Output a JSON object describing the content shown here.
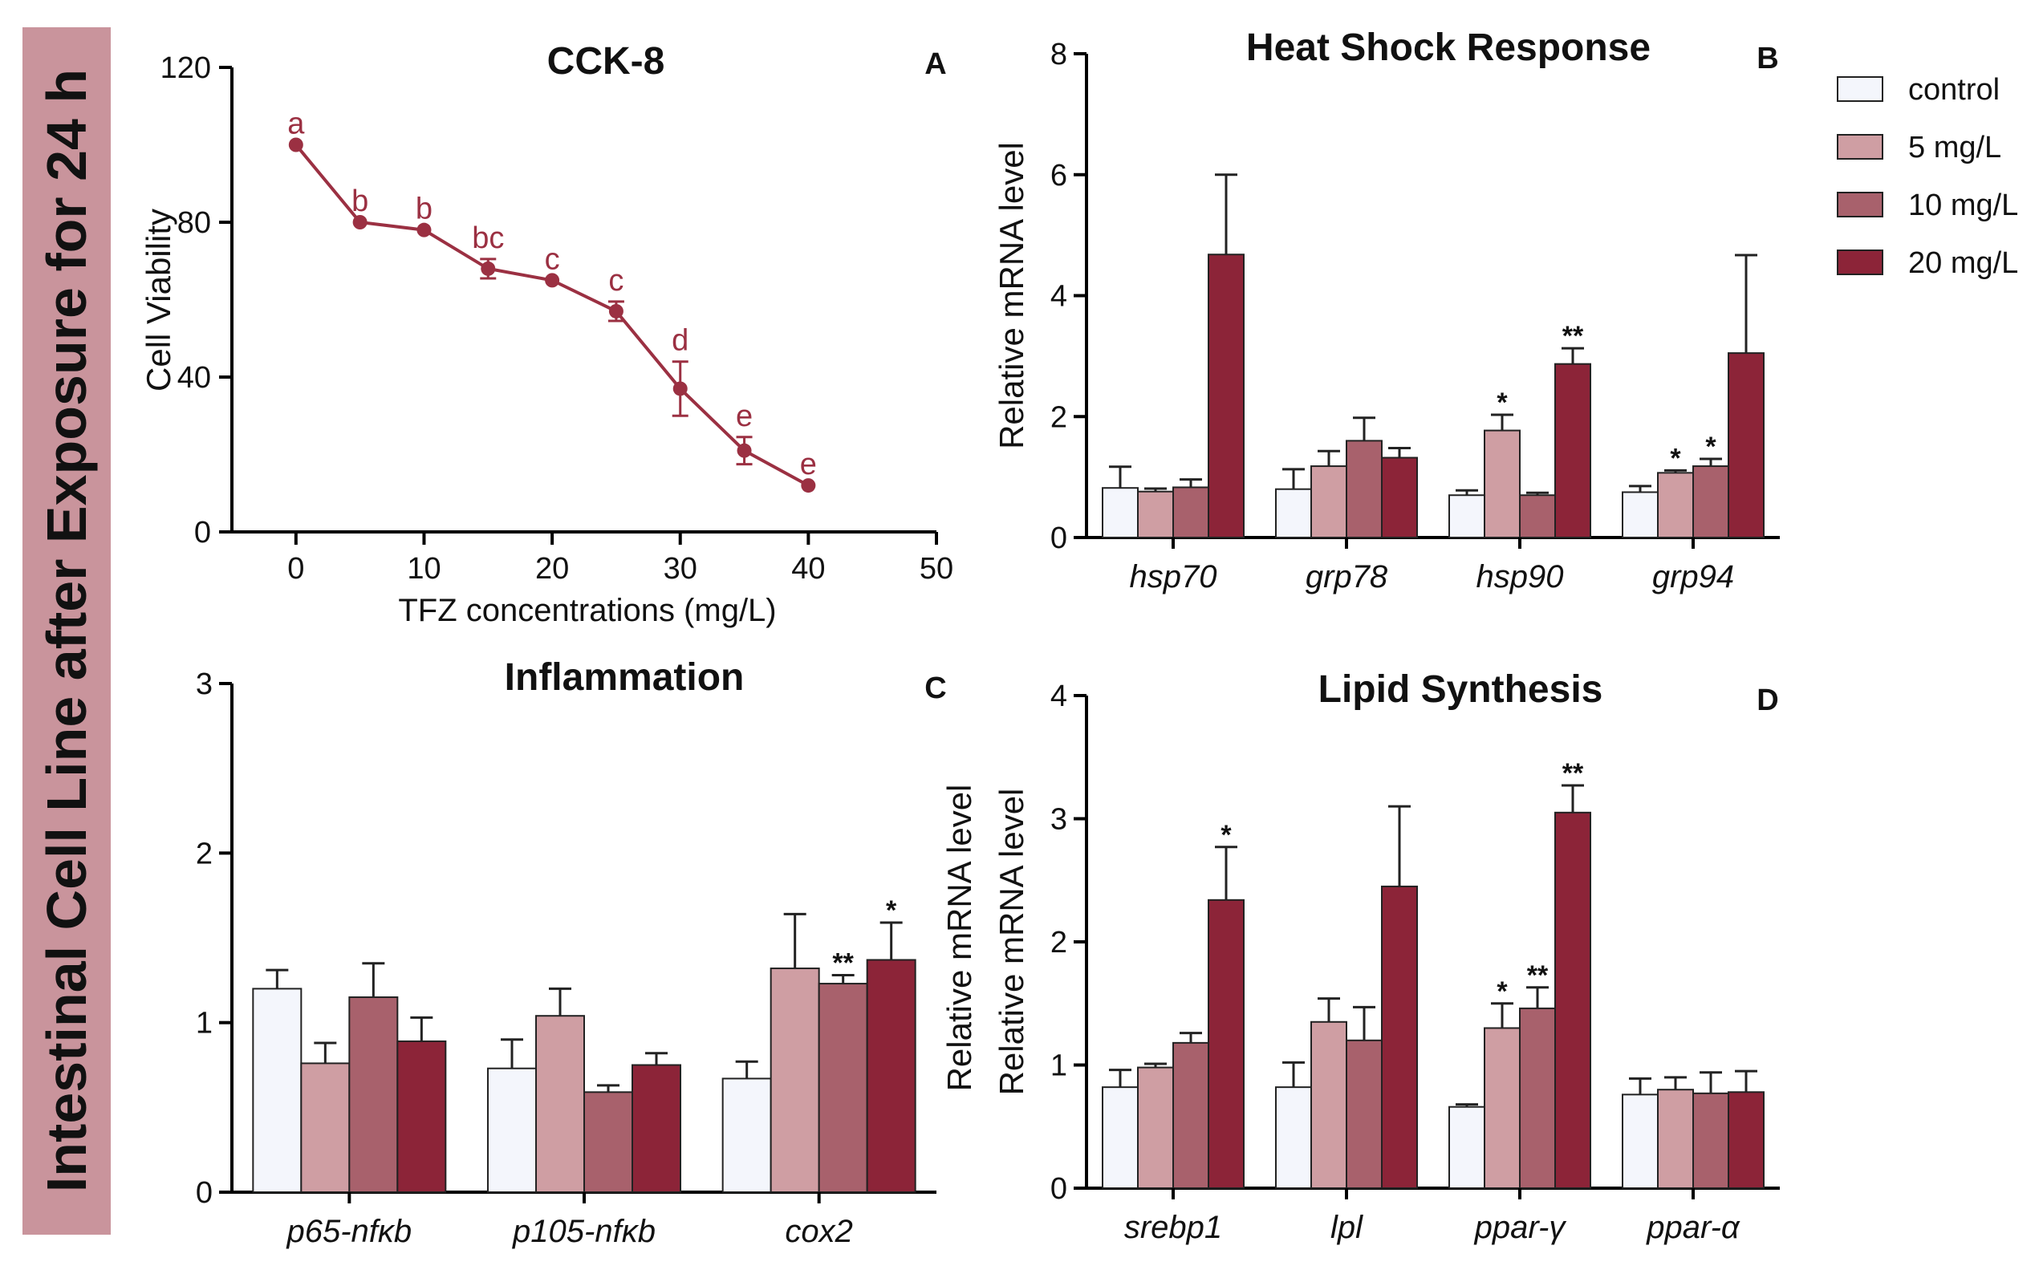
{
  "side_title": "Intestinal Cell Line  after Exposure for 24 h",
  "colors": {
    "control": "#f4f6fc",
    "c5": "#cf9ea3",
    "c10": "#a8616c",
    "c20": "#8c2438",
    "line": "#9b3042",
    "banner": "#c9949c"
  },
  "legend": [
    {
      "label": "control",
      "color": "#f4f6fc"
    },
    {
      "label": "5 mg/L",
      "color": "#cf9ea3"
    },
    {
      "label": "10 mg/L",
      "color": "#a8616c"
    },
    {
      "label": "20 mg/L",
      "color": "#8c2438"
    }
  ],
  "chart_data": [
    {
      "id": "A",
      "type": "line",
      "title": "CCK-8",
      "panel": "A",
      "xlabel": "TFZ concentrations (mg/L)",
      "ylabel": "Cell Viability",
      "xlim": [
        -5,
        50
      ],
      "ylim": [
        0,
        120
      ],
      "xticks": [
        0,
        10,
        20,
        30,
        40,
        50
      ],
      "yticks": [
        0,
        40,
        80,
        120
      ],
      "x": [
        0,
        5,
        10,
        15,
        20,
        25,
        30,
        35,
        40
      ],
      "y": [
        100,
        80,
        78,
        68,
        65,
        57,
        37,
        21,
        12
      ],
      "err": [
        0,
        0,
        0,
        2.5,
        0,
        2.5,
        7,
        3.5,
        0
      ],
      "letters": [
        "a",
        "b",
        "b",
        "bc",
        "c",
        "c",
        "d",
        "e",
        "e"
      ]
    },
    {
      "id": "B",
      "type": "bar",
      "title": "Heat Shock Response",
      "panel": "B",
      "ylabel": "Relative mRNA  level",
      "ylim": [
        0,
        8
      ],
      "yticks": [
        0,
        2,
        4,
        6,
        8
      ],
      "categories": [
        "hsp70",
        "grp78",
        "hsp90",
        "grp94"
      ],
      "series": [
        {
          "name": "control",
          "values": [
            0.82,
            0.8,
            0.7,
            0.75
          ],
          "err": [
            0.35,
            0.33,
            0.08,
            0.1
          ],
          "sig": [
            "",
            "",
            "",
            ""
          ]
        },
        {
          "name": "5 mg/L",
          "values": [
            0.76,
            1.18,
            1.77,
            1.07
          ],
          "err": [
            0.05,
            0.25,
            0.26,
            0.04
          ],
          "sig": [
            "",
            "",
            "*",
            "*"
          ]
        },
        {
          "name": "10 mg/L",
          "values": [
            0.83,
            1.6,
            0.7,
            1.18
          ],
          "err": [
            0.13,
            0.38,
            0.04,
            0.12
          ],
          "sig": [
            "",
            "",
            "",
            "*"
          ]
        },
        {
          "name": "20 mg/L",
          "values": [
            4.68,
            1.32,
            2.87,
            3.05
          ],
          "err": [
            1.32,
            0.16,
            0.26,
            1.62
          ],
          "sig": [
            "",
            "",
            "**",
            ""
          ]
        }
      ]
    },
    {
      "id": "C",
      "type": "bar",
      "title": "Inflammation",
      "panel": "C",
      "ylabel": "Relative mRNA level",
      "ylim": [
        0,
        3
      ],
      "yticks": [
        0,
        1,
        2,
        3
      ],
      "categories": [
        "p65-nfκb",
        "p105-nfκb",
        "cox2"
      ],
      "series": [
        {
          "name": "control",
          "values": [
            1.2,
            0.73,
            0.67
          ],
          "err": [
            0.11,
            0.17,
            0.1
          ],
          "sig": [
            "",
            "",
            ""
          ]
        },
        {
          "name": "5 mg/L",
          "values": [
            0.76,
            1.04,
            1.32
          ],
          "err": [
            0.12,
            0.16,
            0.32
          ],
          "sig": [
            "",
            "",
            ""
          ]
        },
        {
          "name": "10 mg/L",
          "values": [
            1.15,
            0.59,
            1.23
          ],
          "err": [
            0.2,
            0.04,
            0.05
          ],
          "sig": [
            "",
            "",
            "**"
          ]
        },
        {
          "name": "20 mg/L",
          "values": [
            0.89,
            0.75,
            1.37
          ],
          "err": [
            0.14,
            0.07,
            0.22
          ],
          "sig": [
            "",
            "",
            "*"
          ]
        }
      ]
    },
    {
      "id": "D",
      "type": "bar",
      "title": "Lipid Synthesis",
      "panel": "D",
      "ylabel": "Relative mRNA  level",
      "ylim": [
        0,
        4
      ],
      "yticks": [
        0,
        1,
        2,
        3,
        4
      ],
      "categories": [
        "srebp1",
        "lpl",
        "ppar-γ",
        "ppar-α"
      ],
      "series": [
        {
          "name": "control",
          "values": [
            0.82,
            0.82,
            0.66,
            0.76
          ],
          "err": [
            0.14,
            0.2,
            0.02,
            0.13
          ],
          "sig": [
            "",
            "",
            "",
            ""
          ]
        },
        {
          "name": "5 mg/L",
          "values": [
            0.98,
            1.35,
            1.3,
            0.8
          ],
          "err": [
            0.03,
            0.19,
            0.2,
            0.1
          ],
          "sig": [
            "",
            "",
            "*",
            ""
          ]
        },
        {
          "name": "10 mg/L",
          "values": [
            1.18,
            1.2,
            1.46,
            0.77
          ],
          "err": [
            0.08,
            0.27,
            0.17,
            0.17
          ],
          "sig": [
            "",
            "",
            "**",
            ""
          ]
        },
        {
          "name": "20 mg/L",
          "values": [
            2.34,
            2.45,
            3.05,
            0.78
          ],
          "err": [
            0.43,
            0.65,
            0.22,
            0.17
          ],
          "sig": [
            "*",
            "",
            "**",
            ""
          ]
        }
      ]
    }
  ]
}
